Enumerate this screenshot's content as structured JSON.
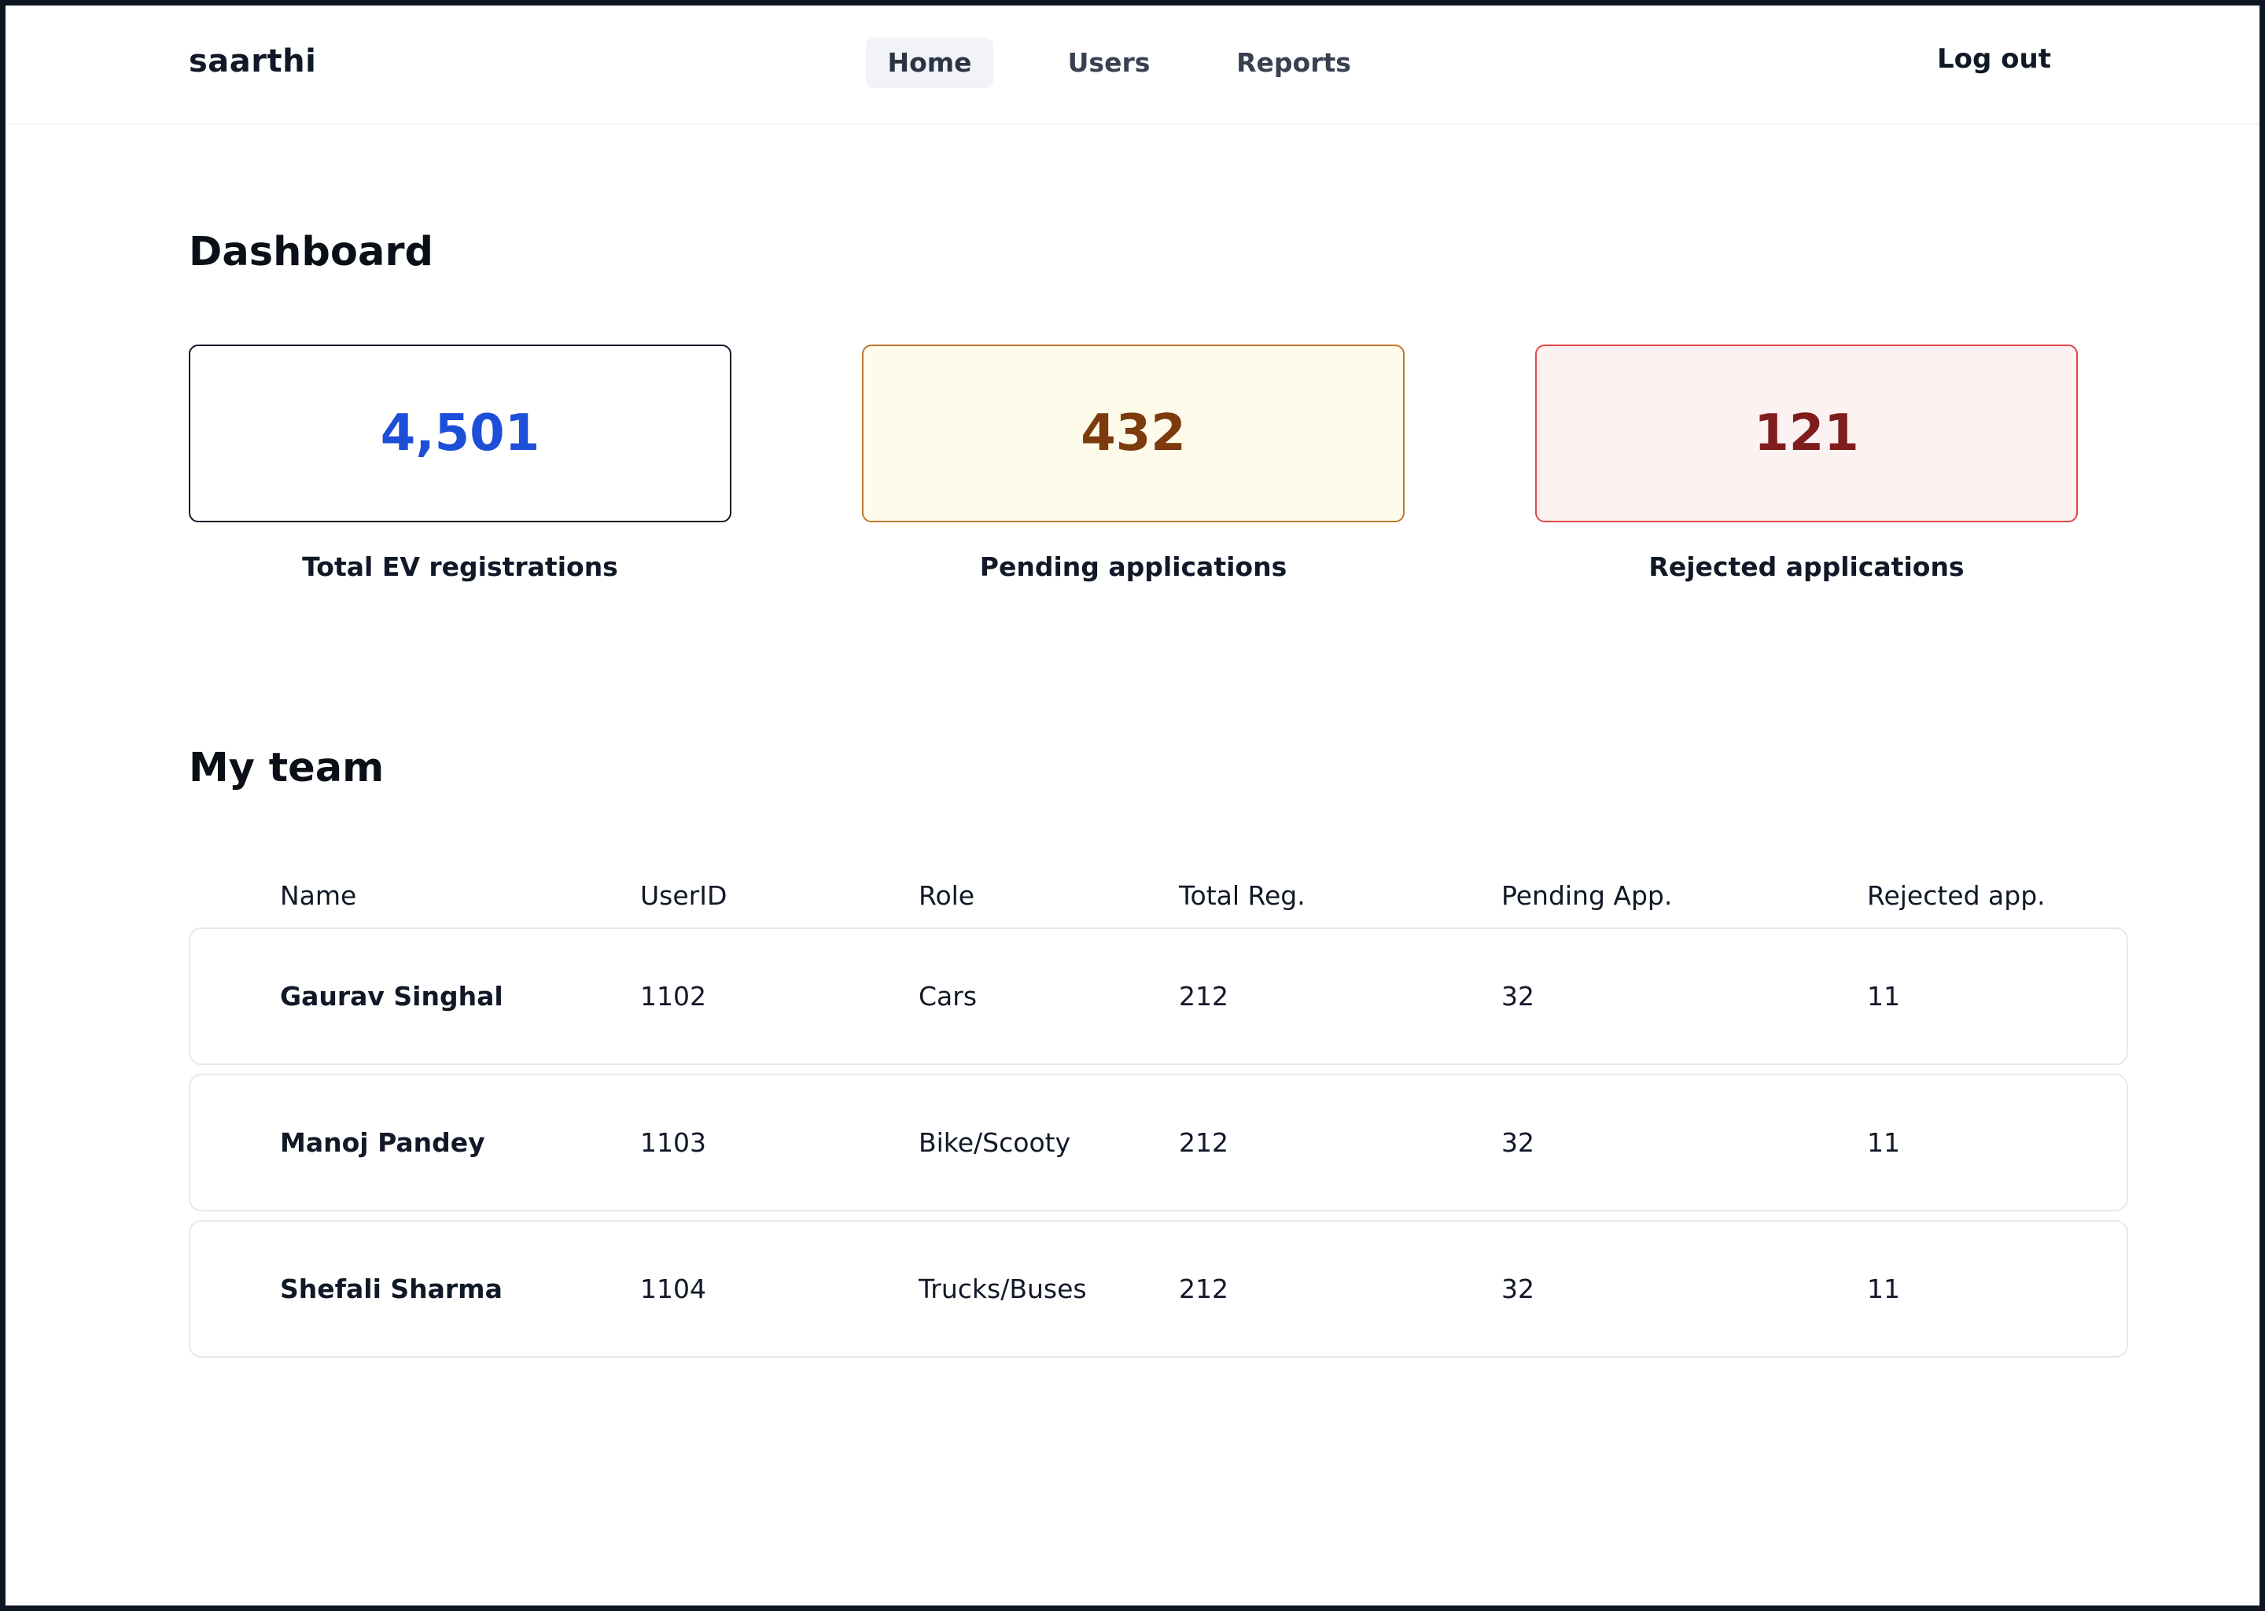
{
  "app": {
    "brand": "saarthi",
    "nav": [
      {
        "label": "Home",
        "active": true
      },
      {
        "label": "Users",
        "active": false
      },
      {
        "label": "Reports",
        "active": false
      }
    ],
    "logout_label": "Log out"
  },
  "dashboard": {
    "title": "Dashboard",
    "stats": [
      {
        "value": "4,501",
        "label": "Total EV registrations",
        "text_color": "#1d4ed8",
        "border_color": "#111827",
        "bg_color": "#ffffff"
      },
      {
        "value": "432",
        "label": "Pending applications",
        "text_color": "#7c3a0d",
        "border_color": "#c2782c",
        "bg_color": "#fefbeb"
      },
      {
        "value": "121",
        "label": "Rejected applications",
        "text_color": "#7f1d1d",
        "border_color": "#e04848",
        "bg_color": "#fdf2f2"
      }
    ]
  },
  "team": {
    "title": "My team",
    "columns": [
      "Name",
      "UserID",
      "Role",
      "Total Reg.",
      "Pending App.",
      "Rejected app."
    ],
    "rows": [
      [
        "Gaurav Singhal",
        "1102",
        "Cars",
        "212",
        "32",
        "11"
      ],
      [
        "Manoj Pandey",
        "1103",
        "Bike/Scooty",
        "212",
        "32",
        "11"
      ],
      [
        "Shefali Sharma",
        "1104",
        "Trucks/Buses",
        "212",
        "32",
        "11"
      ]
    ]
  }
}
